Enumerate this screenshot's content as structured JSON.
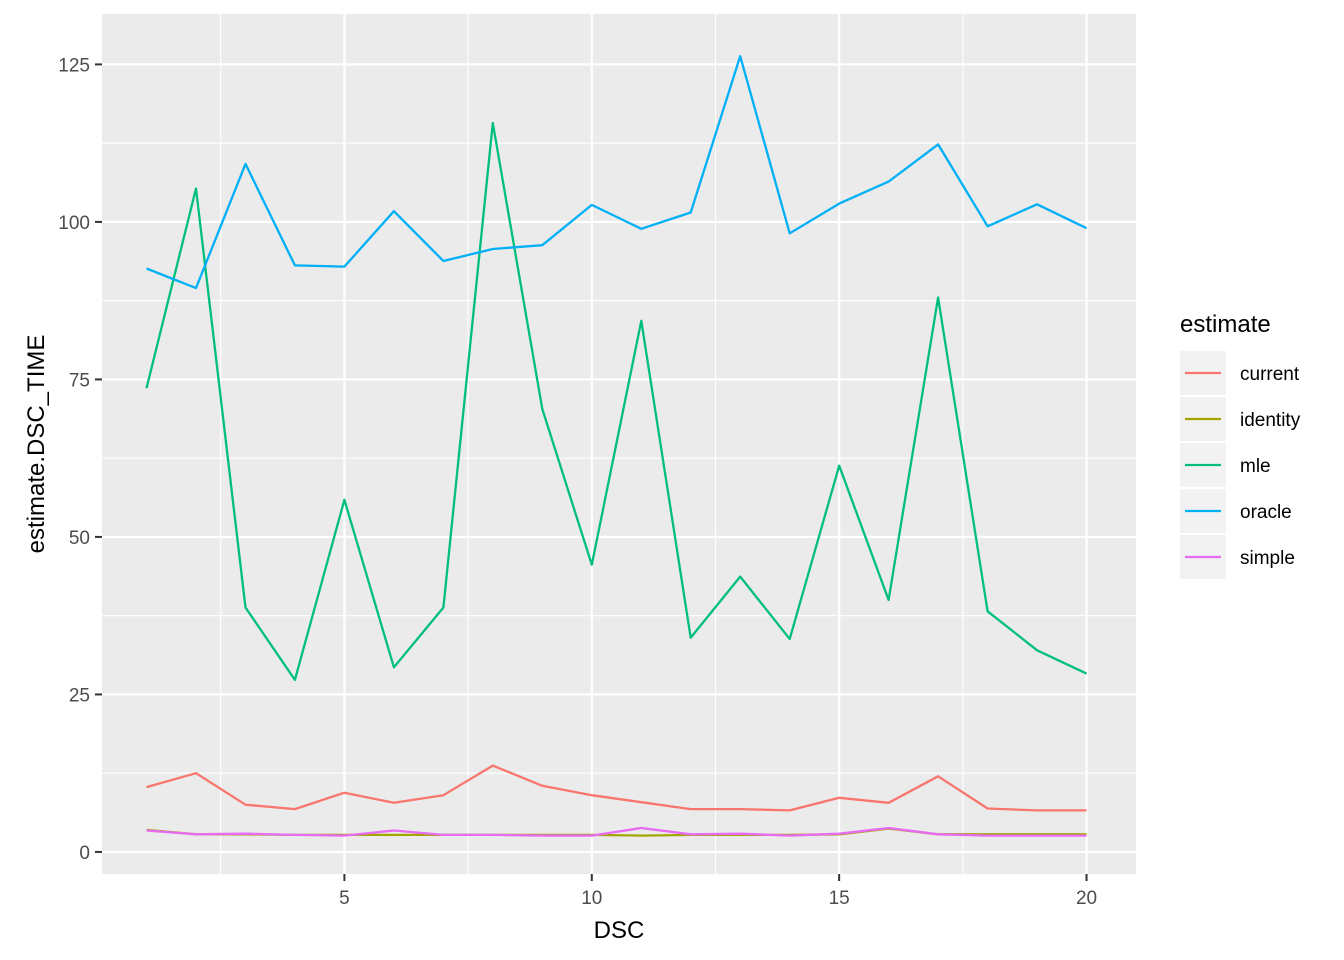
{
  "chart_data": {
    "type": "line",
    "xlabel": "DSC",
    "ylabel": "estimate.DSC_TIME",
    "xlim": [
      0.1,
      21
    ],
    "ylim": [
      -3.5,
      133
    ],
    "x_ticks": [
      5,
      10,
      15,
      20
    ],
    "x_tick_labels": [
      "5",
      "10",
      "15",
      "20"
    ],
    "y_ticks": [
      0,
      25,
      50,
      75,
      100,
      125
    ],
    "y_tick_labels": [
      "0",
      "25",
      "50",
      "75",
      "100",
      "125"
    ],
    "grid": true,
    "legend": {
      "title": "estimate",
      "placement": "right"
    },
    "x": [
      1,
      2,
      3,
      4,
      5,
      6,
      7,
      8,
      9,
      10,
      11,
      12,
      13,
      14,
      15,
      16,
      17,
      18,
      19,
      20
    ],
    "series": [
      {
        "name": "current",
        "color": "#F8766D",
        "values": [
          10.3,
          12.5,
          7.5,
          6.8,
          9.4,
          7.8,
          9.0,
          13.7,
          10.5,
          9.0,
          7.9,
          6.8,
          6.8,
          6.6,
          8.6,
          7.8,
          12.0,
          6.9,
          6.6,
          6.6
        ]
      },
      {
        "name": "identity",
        "color": "#A3A500",
        "values": [
          3.5,
          2.8,
          2.8,
          2.7,
          2.7,
          2.7,
          2.7,
          2.7,
          2.7,
          2.7,
          2.6,
          2.7,
          2.7,
          2.7,
          2.8,
          3.7,
          2.8,
          2.8,
          2.8,
          2.8
        ]
      },
      {
        "name": "mle",
        "color": "#00BF7D",
        "values": [
          73.6,
          105.3,
          38.8,
          27.3,
          55.9,
          29.3,
          38.8,
          115.7,
          70.3,
          45.6,
          84.3,
          34.0,
          43.7,
          33.8,
          61.3,
          40.0,
          88.0,
          38.2,
          32.0,
          28.3
        ]
      },
      {
        "name": "oracle",
        "color": "#00B0F6",
        "values": [
          92.6,
          89.5,
          109.2,
          93.1,
          92.9,
          101.7,
          93.8,
          95.7,
          96.3,
          102.7,
          98.9,
          101.5,
          126.3,
          98.2,
          102.9,
          106.4,
          112.3,
          99.3,
          102.8,
          99.0
        ]
      },
      {
        "name": "simple",
        "color": "#E76BF3",
        "values": [
          3.4,
          2.8,
          2.9,
          2.7,
          2.6,
          3.4,
          2.7,
          2.7,
          2.6,
          2.6,
          3.8,
          2.8,
          2.9,
          2.6,
          2.9,
          3.8,
          2.8,
          2.6,
          2.6,
          2.6
        ]
      }
    ]
  }
}
